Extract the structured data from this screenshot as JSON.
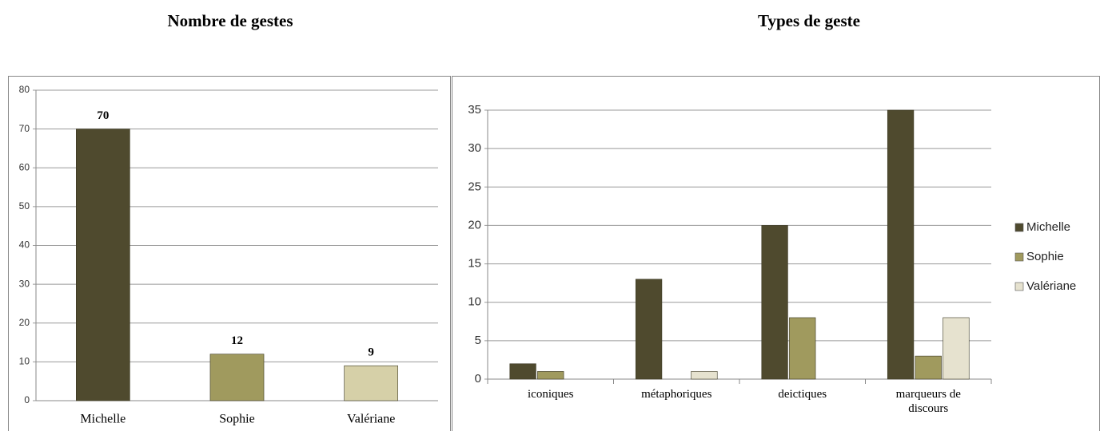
{
  "chart_data": [
    {
      "type": "bar",
      "title": "Nombre de gestes",
      "categories": [
        "Michelle",
        "Sophie",
        "Valériane"
      ],
      "values": [
        70,
        12,
        9
      ],
      "colors": [
        "#4f4a2e",
        "#a09a5e",
        "#d6d0a8"
      ],
      "ylim": [
        0,
        80
      ],
      "yticks": [
        0,
        10,
        20,
        30,
        40,
        50,
        60,
        70,
        80
      ],
      "grid": true,
      "data_labels": true
    },
    {
      "type": "grouped_bar",
      "title": "Types de geste",
      "categories": [
        "iconiques",
        "métaphoriques",
        "deictiques",
        "marqueurs de discours"
      ],
      "series": [
        {
          "name": "Michelle",
          "color": "#4f4a2e",
          "values": [
            2,
            13,
            20,
            35
          ]
        },
        {
          "name": "Sophie",
          "color": "#a09a5e",
          "values": [
            1,
            0,
            8,
            3
          ]
        },
        {
          "name": "Valériane",
          "color": "#e6e2cf",
          "values": [
            0,
            1,
            0,
            8
          ]
        }
      ],
      "ylim": [
        0,
        35
      ],
      "yticks": [
        0,
        5,
        10,
        15,
        20,
        25,
        30,
        35
      ],
      "grid": true,
      "legend": "right"
    }
  ]
}
